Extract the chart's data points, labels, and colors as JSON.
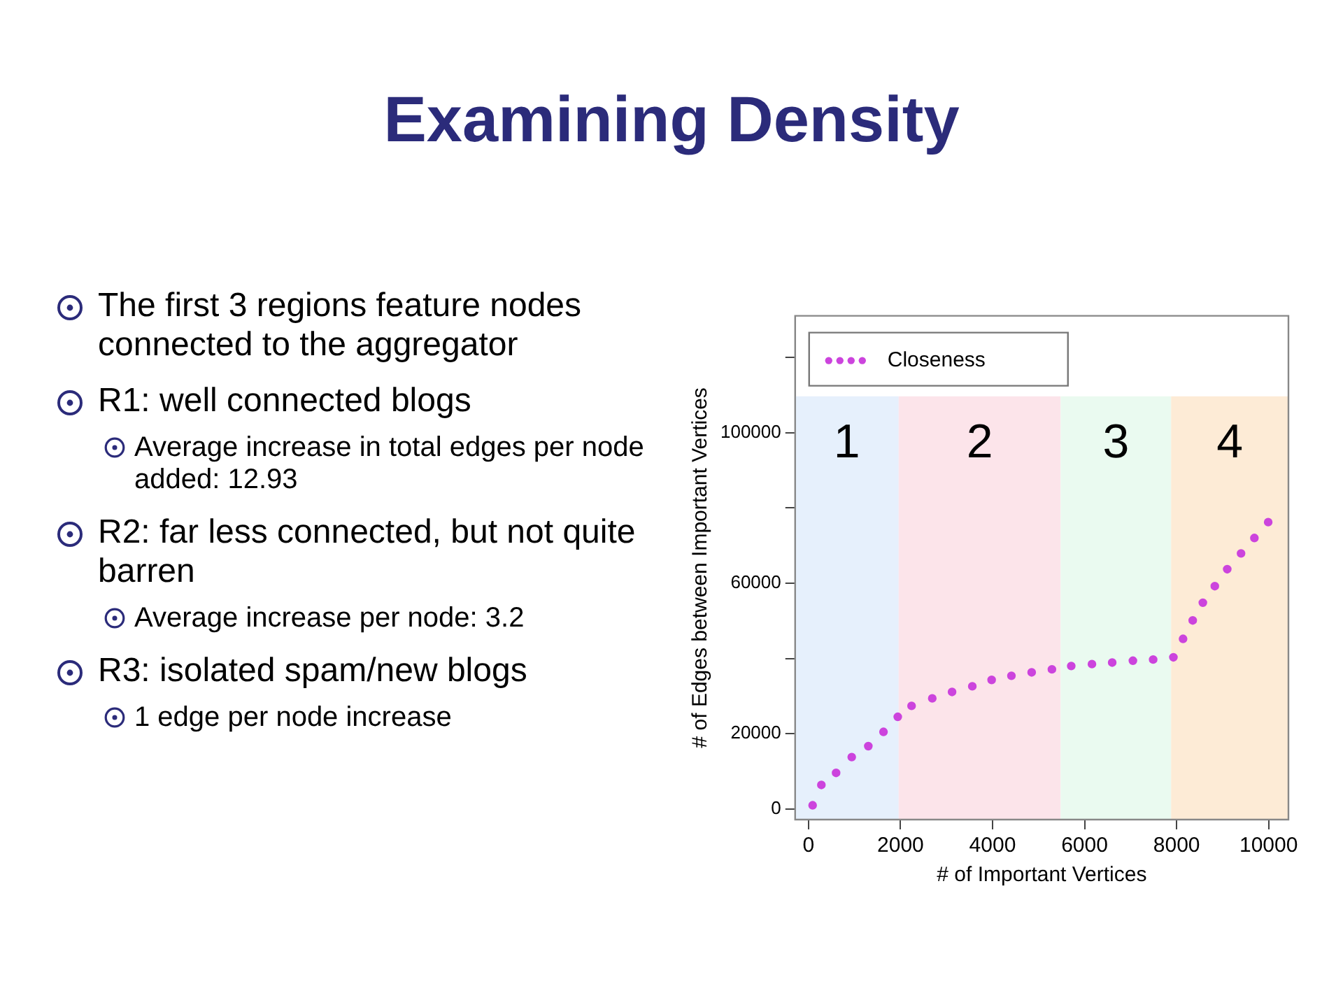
{
  "chart_data": {
    "type": "scatter",
    "title": "Examining Density",
    "xlabel": "# of Important Vertices",
    "ylabel": "# of Edges between Important Vertices",
    "annotations": [
      "The first 3 regions feature nodes connected to the aggregator",
      "R1: well connected blogs",
      "Average increase in total edges per node added: 12.93",
      "R2: far less connected, but not quite barren",
      "Average increase per node: 3.2",
      "R3: isolated spam/new blogs",
      "1 edge per node increase"
    ],
    "series": [
      {
        "name": "Closeness",
        "color": "#cc44dd",
        "x": [
          90,
          280,
          600,
          940,
          1300,
          1630,
          1940,
          2240,
          2690,
          3120,
          3560,
          3980,
          4410,
          4850,
          5290,
          5710,
          6160,
          6600,
          7050,
          7490,
          7930,
          8140,
          8350,
          8570,
          8830,
          9100,
          9400,
          9690,
          9990
        ],
        "values": [
          1000,
          6400,
          9600,
          13800,
          16700,
          20500,
          24500,
          27400,
          29400,
          31100,
          32600,
          34300,
          35400,
          36300,
          37100,
          38000,
          38500,
          38900,
          39400,
          39700,
          40300,
          45200,
          50100,
          54800,
          59200,
          63700,
          67900,
          72000,
          76200
        ]
      }
    ],
    "xlim": [
      -290,
      10430
    ],
    "xticks": [
      0,
      2000,
      4000,
      6000,
      8000,
      10000
    ],
    "ylim": [
      -2800,
      131000
    ],
    "yticks": [
      0,
      20000,
      {
        "value": 40000,
        "label": null
      },
      60000,
      {
        "value": 80000,
        "label": null
      },
      100000,
      {
        "value": 120000,
        "label": null
      }
    ],
    "bands": [
      {
        "axis": "x",
        "from": -290,
        "to": 1960,
        "label": "1",
        "color": "#e6f0fc"
      },
      {
        "axis": "x",
        "from": 1960,
        "to": 5480,
        "label": "2",
        "color": "#fce4ea"
      },
      {
        "axis": "x",
        "from": 5480,
        "to": 7880,
        "label": "3",
        "color": "#eafaf0"
      },
      {
        "axis": "x",
        "from": 7880,
        "to": 10430,
        "label": "4",
        "color": "#fdebd6"
      }
    ],
    "grid": false,
    "legend": "top left",
    "marker": "circle"
  }
}
